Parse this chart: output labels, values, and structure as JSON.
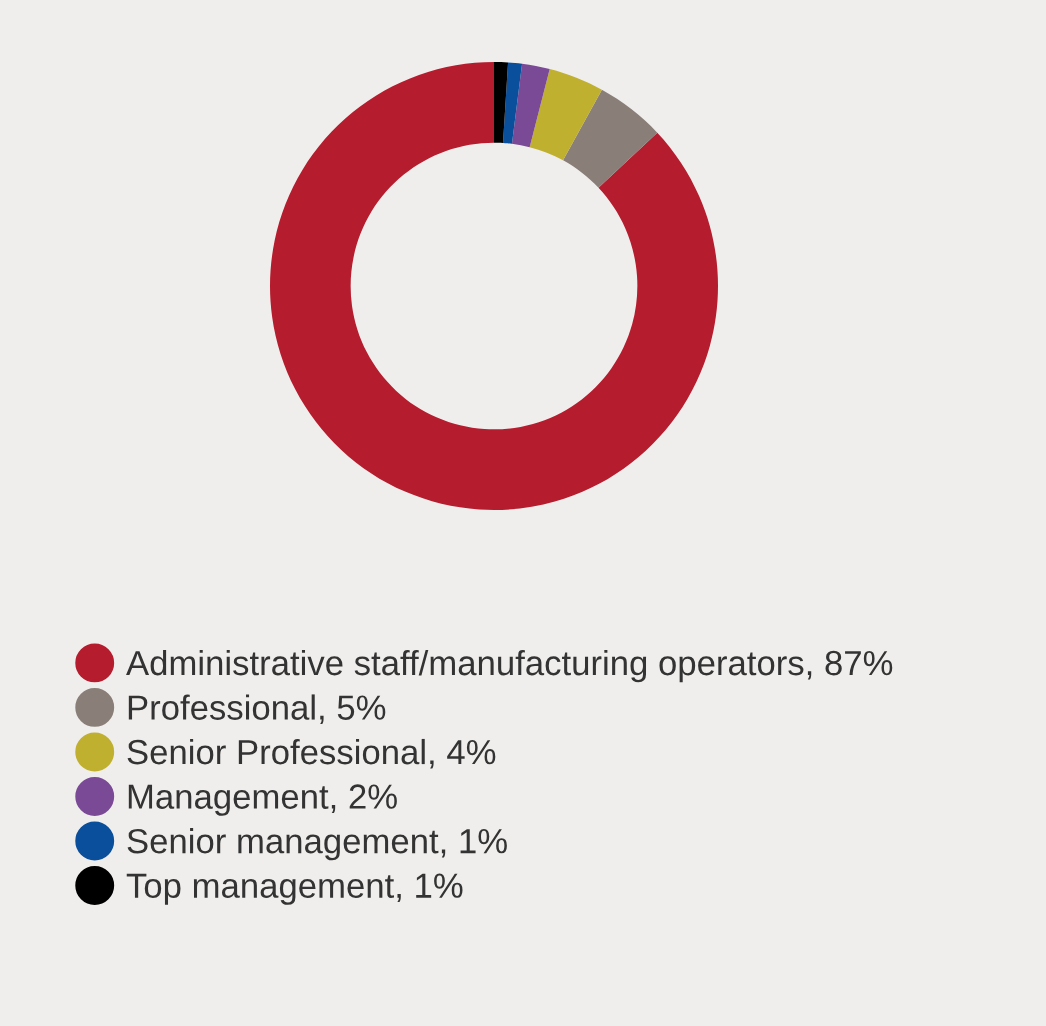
{
  "chart_data": {
    "type": "donut",
    "categories": [
      "Administrative staff/manufacturing operators",
      "Professional",
      "Senior Professional",
      "Management",
      "Senior management",
      "Top management"
    ],
    "values": [
      87,
      5,
      4,
      2,
      1,
      1
    ],
    "value_labels": [
      "87%",
      "5%",
      "4%",
      "2%",
      "1%",
      "1%"
    ],
    "colors": [
      "#b51c2e",
      "#8a7f78",
      "#c0b030",
      "#7b4a96",
      "#0a4f9c",
      "#000000"
    ],
    "legend": "bottom"
  }
}
